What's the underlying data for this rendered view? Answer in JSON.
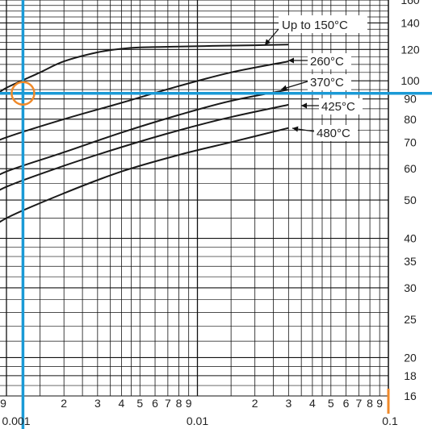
{
  "chart_data": {
    "type": "line",
    "x_scale": "log",
    "y_scale": "log",
    "grid": true,
    "xlim": [
      0.0007,
      0.1
    ],
    "ylim": [
      16,
      160
    ],
    "y_ticks": [
      160,
      140,
      120,
      100,
      90,
      80,
      70,
      60,
      50,
      40,
      35,
      30,
      25,
      20,
      18,
      16
    ],
    "x_minor_labels": [
      "2",
      "3",
      "4",
      "5",
      "6",
      "7",
      "8",
      "9"
    ],
    "x_decade_labels": [
      "0.001",
      "0.01",
      "0.1"
    ],
    "x_edge_label": "9",
    "series": [
      {
        "name": "Up to 150°C",
        "points": [
          [
            0.0007,
            86
          ],
          [
            0.00085,
            91
          ],
          [
            0.001,
            96
          ],
          [
            0.0015,
            105
          ],
          [
            0.002,
            112
          ],
          [
            0.003,
            118
          ],
          [
            0.004,
            120.5
          ],
          [
            0.005,
            121.5
          ],
          [
            0.008,
            122
          ],
          [
            0.012,
            122.5
          ],
          [
            0.02,
            123
          ],
          [
            0.03,
            123.5
          ]
        ]
      },
      {
        "name": "260°C",
        "points": [
          [
            0.0007,
            67
          ],
          [
            0.001,
            72
          ],
          [
            0.002,
            80
          ],
          [
            0.004,
            88
          ],
          [
            0.008,
            97
          ],
          [
            0.015,
            105
          ],
          [
            0.03,
            112
          ]
        ]
      },
      {
        "name": "370°C",
        "points": [
          [
            0.0007,
            54
          ],
          [
            0.001,
            59
          ],
          [
            0.002,
            66
          ],
          [
            0.004,
            74
          ],
          [
            0.008,
            82
          ],
          [
            0.015,
            89
          ],
          [
            0.03,
            95
          ]
        ]
      },
      {
        "name": "425°C",
        "points": [
          [
            0.0007,
            49
          ],
          [
            0.001,
            54
          ],
          [
            0.002,
            61
          ],
          [
            0.004,
            68
          ],
          [
            0.008,
            75
          ],
          [
            0.015,
            81
          ],
          [
            0.03,
            87
          ]
        ]
      },
      {
        "name": "480°C",
        "points": [
          [
            0.0007,
            40
          ],
          [
            0.001,
            45
          ],
          [
            0.002,
            52
          ],
          [
            0.004,
            59
          ],
          [
            0.008,
            65
          ],
          [
            0.015,
            70
          ],
          [
            0.03,
            76
          ]
        ]
      }
    ],
    "marker": {
      "x": 0.00122,
      "y": 93,
      "color_line": "#1a9ad6",
      "color_circle": "#f08a2a"
    },
    "x_end_marker_color": "#f08a2a"
  }
}
